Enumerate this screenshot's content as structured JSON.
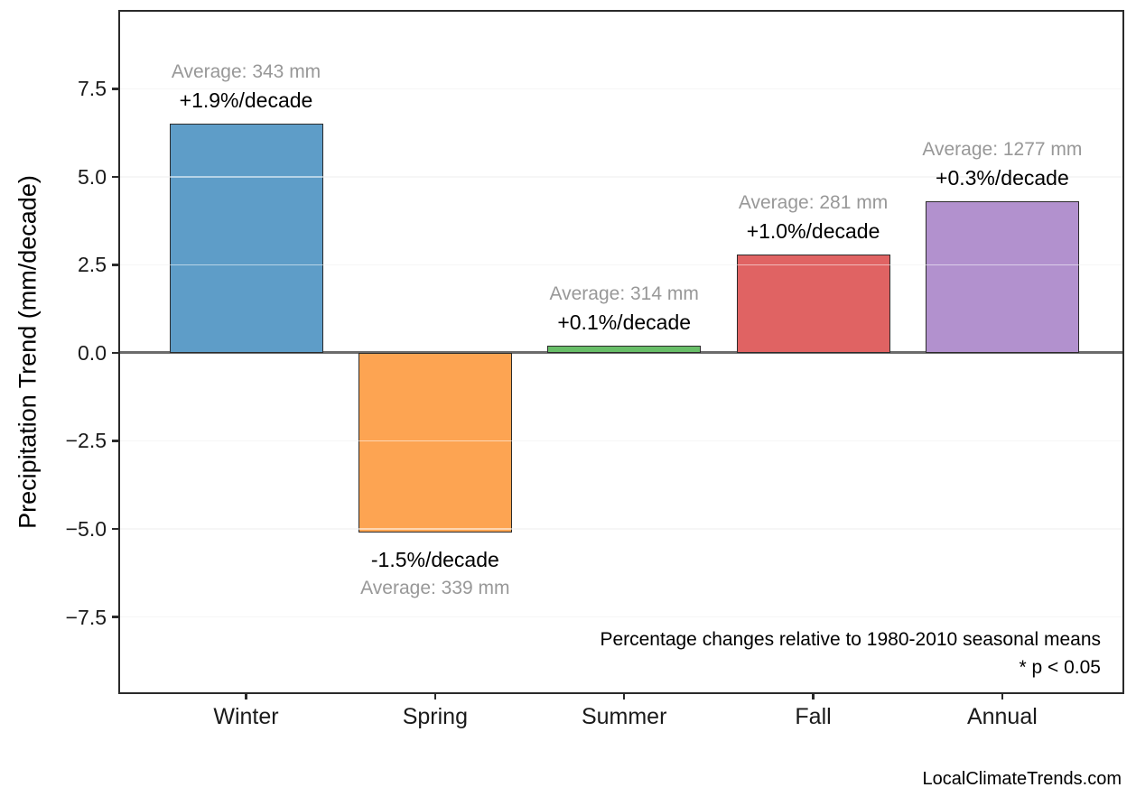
{
  "chart_data": {
    "type": "bar",
    "title": "",
    "xlabel": "",
    "ylabel": "Precipitation Trend (mm/decade)",
    "categories": [
      "Winter",
      "Spring",
      "Summer",
      "Fall",
      "Annual"
    ],
    "values": [
      6.5,
      -5.1,
      0.2,
      2.8,
      4.3
    ],
    "values_unit": "mm/decade",
    "averages_mm": [
      343,
      339,
      314,
      281,
      1277
    ],
    "trends_pct_per_decade": [
      "+1.9",
      "-1.5",
      "+0.1",
      "+1.0",
      "+0.3"
    ],
    "bar_labels": [
      {
        "average": "Average: 343 mm",
        "trend": "+1.9%/decade"
      },
      {
        "average": "Average: 339 mm",
        "trend": "-1.5%/decade"
      },
      {
        "average": "Average: 314 mm",
        "trend": "+0.1%/decade"
      },
      {
        "average": "Average: 281 mm",
        "trend": "+1.0%/decade"
      },
      {
        "average": "Average: 1277 mm",
        "trend": "+0.3%/decade"
      }
    ],
    "bar_colors": [
      "#5E9DC8",
      "#FDA452",
      "#68BE68",
      "#E06363",
      "#B291CE"
    ],
    "bar_edge_color": "#2b2b2b",
    "yticks": [
      7.5,
      5.0,
      2.5,
      0.0,
      -2.5,
      -5.0,
      -7.5
    ],
    "ytick_labels": [
      "7.5",
      "5.0",
      "2.5",
      "0.0",
      "−2.5",
      "−5.0",
      "−7.5"
    ],
    "ylim": [
      -9.64,
      9.69
    ],
    "grid": "horizontal gridlines at y ticks, drawn over bars",
    "legend": "none",
    "zero_line_color": "#6b6b6b",
    "annotations": [
      "Percentage changes relative to 1980-2010 seasonal means",
      "* p < 0.05"
    ]
  },
  "footer": {
    "watermark": "LocalClimateTrends.com"
  }
}
